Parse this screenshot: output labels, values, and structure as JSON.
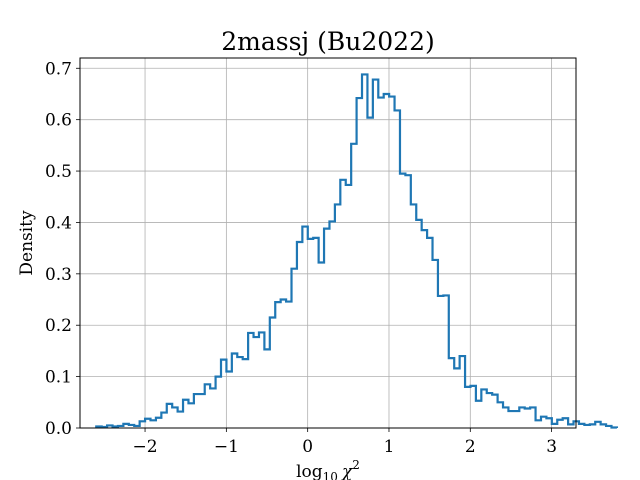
{
  "chart_data": {
    "type": "step-histogram",
    "title": "2massj (Bu2022)",
    "xlabel": "log10 χ2",
    "xlabel_base": "log",
    "xlabel_sub": "10",
    "xlabel_chi": "χ",
    "xlabel_sup": "2",
    "ylabel": "Density",
    "xlim": [
      -2.8,
      3.3
    ],
    "ylim": [
      0,
      0.72
    ],
    "xticks": [
      -2,
      -1,
      0,
      1,
      2,
      3
    ],
    "xtick_labels": [
      "−2",
      "−1",
      "0",
      "1",
      "2",
      "3"
    ],
    "yticks": [
      0.0,
      0.1,
      0.2,
      0.3,
      0.4,
      0.5,
      0.6,
      0.7
    ],
    "ytick_labels": [
      "0.0",
      "0.1",
      "0.2",
      "0.3",
      "0.4",
      "0.5",
      "0.6",
      "0.7"
    ],
    "grid": true,
    "color": "#1f77b4",
    "bin_start": -2.6,
    "bin_width": 0.0667,
    "values": [
      0.003,
      0.002,
      0.005,
      0.003,
      0.004,
      0.008,
      0.006,
      0.004,
      0.013,
      0.018,
      0.015,
      0.02,
      0.03,
      0.047,
      0.04,
      0.032,
      0.055,
      0.048,
      0.066,
      0.066,
      0.085,
      0.077,
      0.1,
      0.133,
      0.11,
      0.145,
      0.138,
      0.134,
      0.185,
      0.177,
      0.186,
      0.153,
      0.215,
      0.245,
      0.25,
      0.246,
      0.31,
      0.362,
      0.392,
      0.368,
      0.37,
      0.322,
      0.388,
      0.402,
      0.435,
      0.483,
      0.473,
      0.553,
      0.642,
      0.688,
      0.604,
      0.678,
      0.643,
      0.65,
      0.645,
      0.618,
      0.495,
      0.492,
      0.435,
      0.405,
      0.385,
      0.37,
      0.327,
      0.257,
      0.258,
      0.136,
      0.116,
      0.14,
      0.08,
      0.082,
      0.053,
      0.075,
      0.068,
      0.065,
      0.05,
      0.04,
      0.033,
      0.033,
      0.04,
      0.038,
      0.04,
      0.015,
      0.022,
      0.019,
      0.008,
      0.016,
      0.019,
      0.007,
      0.013,
      0.008,
      0.006,
      0.007,
      0.012,
      0.007,
      0.004,
      0.001
    ]
  }
}
